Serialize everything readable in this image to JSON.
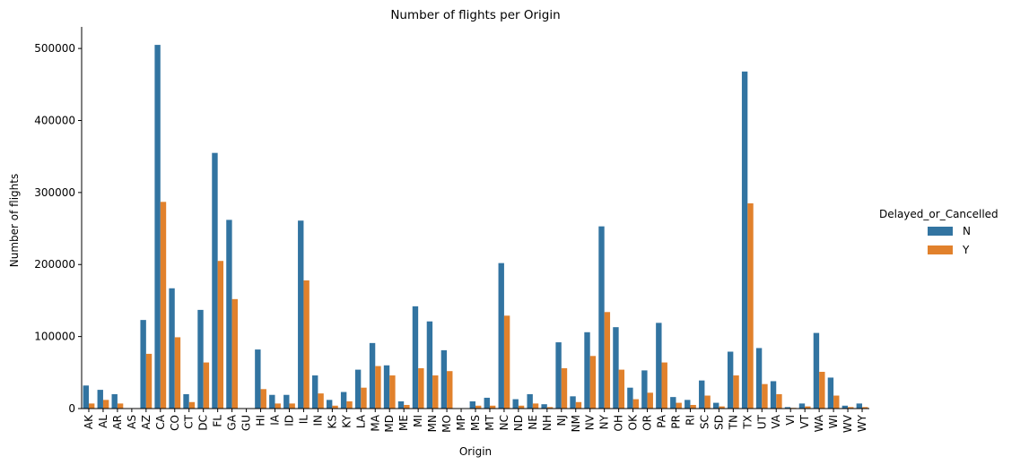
{
  "chart_data": {
    "type": "bar",
    "title": "Number of flights per Origin",
    "xlabel": "Origin",
    "ylabel": "Number of flights",
    "ylim": [
      0,
      530000
    ],
    "yticks": [
      0,
      100000,
      200000,
      300000,
      400000,
      500000
    ],
    "ytick_labels": [
      "0",
      "100000",
      "200000",
      "300000",
      "400000",
      "500000"
    ],
    "grid": false,
    "legend": {
      "title": "Delayed_or_Cancelled",
      "placement": "right"
    },
    "categories": [
      "AK",
      "AL",
      "AR",
      "AS",
      "AZ",
      "CA",
      "CO",
      "CT",
      "DC",
      "FL",
      "GA",
      "GU",
      "HI",
      "IA",
      "ID",
      "IL",
      "IN",
      "KS",
      "KY",
      "LA",
      "MA",
      "MD",
      "ME",
      "MI",
      "MN",
      "MO",
      "MP",
      "MS",
      "MT",
      "NC",
      "ND",
      "NE",
      "NH",
      "NJ",
      "NM",
      "NV",
      "NY",
      "OH",
      "OK",
      "OR",
      "PA",
      "PR",
      "RI",
      "SC",
      "SD",
      "TN",
      "TX",
      "UT",
      "VA",
      "VI",
      "VT",
      "WA",
      "WI",
      "WV",
      "WY"
    ],
    "series": [
      {
        "name": "N",
        "color": "#3274a1",
        "values": [
          32000,
          26000,
          20000,
          300,
          123000,
          505000,
          167000,
          20000,
          137000,
          355000,
          262000,
          300,
          82000,
          19000,
          19000,
          261000,
          46000,
          12000,
          23000,
          54000,
          91000,
          60000,
          10000,
          142000,
          121000,
          81000,
          300,
          10000,
          15000,
          202000,
          13000,
          20000,
          6000,
          92000,
          17000,
          106000,
          253000,
          113000,
          29000,
          53000,
          119000,
          16000,
          12000,
          39000,
          8000,
          79000,
          468000,
          84000,
          38000,
          2000,
          7000,
          105000,
          43000,
          4000,
          7000
        ]
      },
      {
        "name": "Y",
        "color": "#e1812c",
        "values": [
          7000,
          12000,
          7000,
          100,
          76000,
          287000,
          99000,
          9000,
          64000,
          205000,
          152000,
          100,
          27000,
          7000,
          7000,
          178000,
          21000,
          4000,
          10000,
          29000,
          59000,
          46000,
          5000,
          56000,
          46000,
          52000,
          100,
          4000,
          4000,
          129000,
          4000,
          7000,
          2000,
          56000,
          9000,
          73000,
          134000,
          54000,
          13000,
          22000,
          64000,
          8000,
          5000,
          18000,
          3000,
          46000,
          285000,
          34000,
          20000,
          1000,
          3000,
          51000,
          18000,
          2000,
          2000
        ]
      }
    ]
  }
}
